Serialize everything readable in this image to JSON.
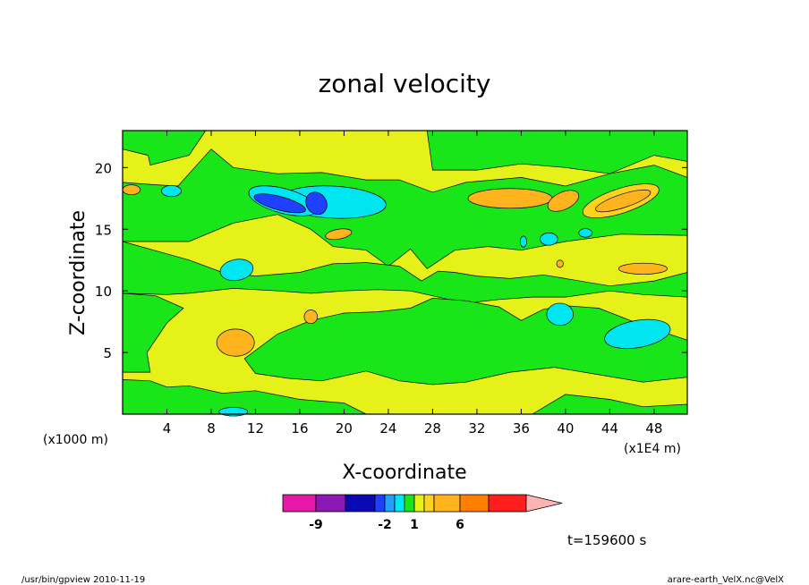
{
  "chart_data": {
    "type": "heatmap",
    "title": "zonal velocity",
    "xlabel": "X-coordinate",
    "ylabel": "Z-coordinate",
    "x_unit": "(x1E4 m)",
    "y_unit": "(x1000 m)",
    "xlim": [
      0,
      51
    ],
    "ylim": [
      0,
      23
    ],
    "x_ticks": [
      "4",
      "8",
      "12",
      "16",
      "20",
      "24",
      "28",
      "32",
      "36",
      "40",
      "44",
      "48"
    ],
    "y_ticks": [
      "5",
      "10",
      "15",
      "20"
    ],
    "grid": false,
    "colorbar": {
      "colors": [
        "#e619a6",
        "#8c19b3",
        "#0a0ab4",
        "#2040ff",
        "#1ea0ff",
        "#00e6f0",
        "#19e619",
        "#e6f019",
        "#ffd21e",
        "#ffb41e",
        "#ff8000",
        "#ff1e1e",
        "#ff7878",
        "#ffb4b4"
      ],
      "tick_labels": [
        "-9",
        "-2",
        "1",
        "6"
      ]
    },
    "background_level": "yellow (0 to 1)",
    "features": [
      {
        "level": "green",
        "x": [
          0,
          51
        ],
        "y": [
          14.5,
          18.5
        ],
        "desc": "upper green band"
      },
      {
        "level": "blue/cyan",
        "x": [
          10,
          22
        ],
        "y": [
          16,
          19
        ],
        "desc": "negative jet core near z=17"
      },
      {
        "level": "orange",
        "x": [
          31,
          50
        ],
        "y": [
          16,
          18.5
        ],
        "desc": "positive core near z=17"
      },
      {
        "level": "cyan",
        "x": [
          9,
          12
        ],
        "y": [
          11,
          13
        ],
        "desc": "negative blob"
      },
      {
        "level": "cyan",
        "x": [
          42,
          50
        ],
        "y": [
          5,
          8
        ],
        "desc": "negative blob lower right"
      },
      {
        "level": "orange",
        "x": [
          8,
          12
        ],
        "y": [
          4.5,
          7
        ],
        "desc": "positive blob lower left"
      }
    ]
  },
  "footer": {
    "left": "/usr/bin/gpview   2010-11-19",
    "right": "arare-earth_VelX.nc@VelX",
    "time": "t=159600 s"
  }
}
